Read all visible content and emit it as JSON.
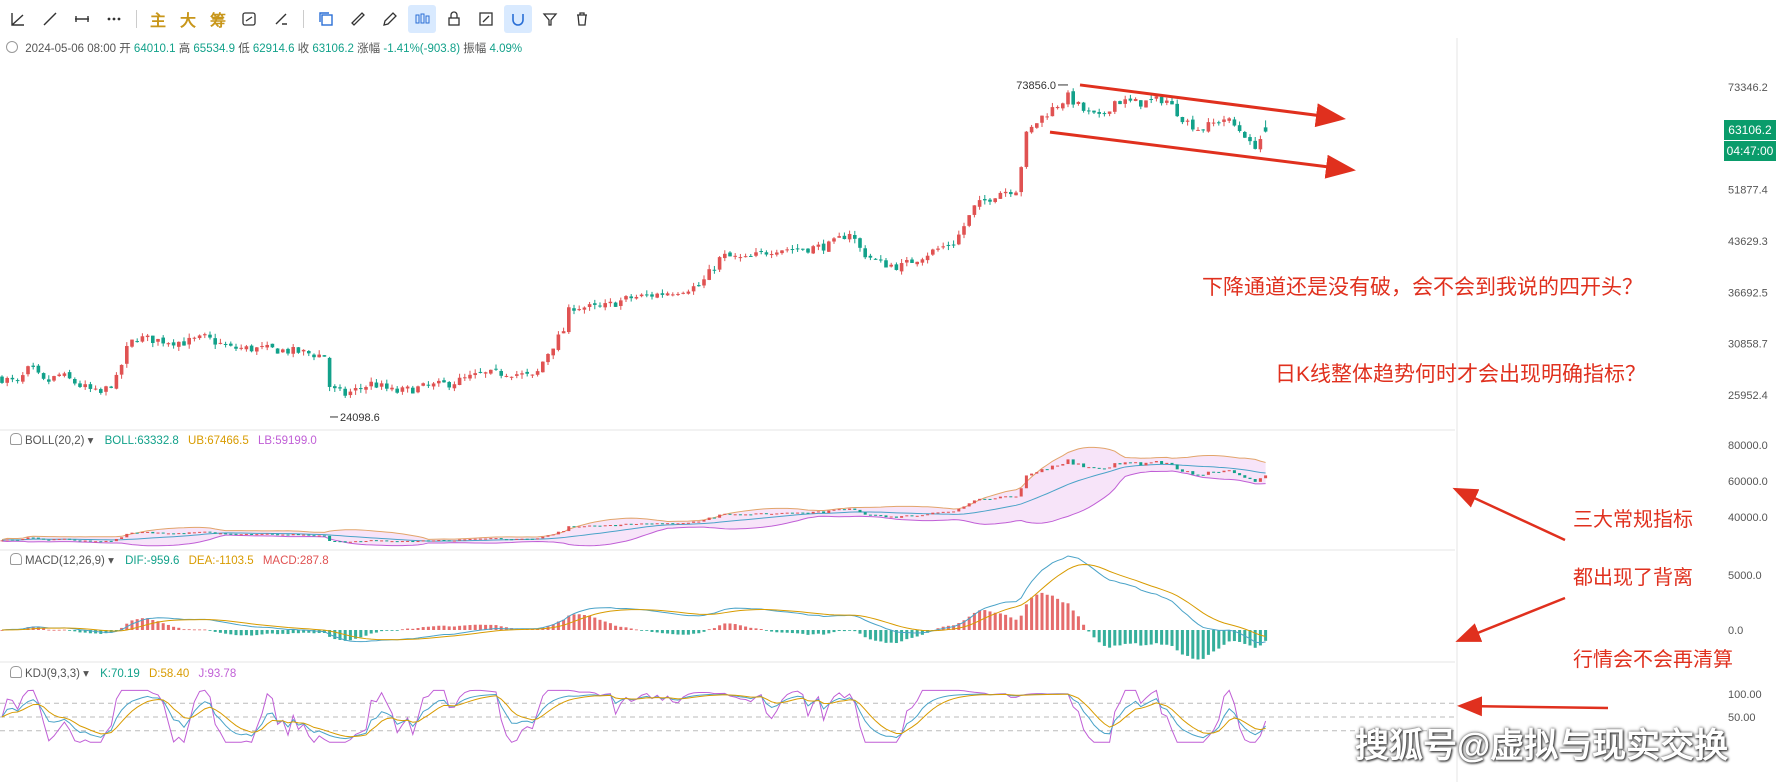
{
  "toolbar": {
    "items": [
      "主",
      "大",
      "筹"
    ]
  },
  "header": {
    "date": "2024-05-06 08:00",
    "open_label": "开",
    "open": "64010.1",
    "high_label": "高",
    "high": "65534.9",
    "low_label": "低",
    "low": "62914.6",
    "close_label": "收",
    "close": "63106.2",
    "change_label": "涨幅",
    "change": "-1.41%(-903.8)",
    "amp_label": "振幅",
    "amp": "4.09%"
  },
  "price_axis": {
    "ticks": [
      73346.2,
      51877.4,
      43629.3,
      36692.5,
      30858.7,
      25952.4
    ],
    "tick_labels": [
      "73346.2",
      "51877.4",
      "43629.3",
      "36692.5",
      "30858.7",
      "25952.4"
    ],
    "last_price": "63106.2",
    "countdown": "04:47:00",
    "log_scale": true
  },
  "markers": {
    "high": "73856.0",
    "low": "24098.6"
  },
  "boll": {
    "name": "BOLL(20,2)",
    "boll_label": "BOLL:",
    "boll": "63332.8",
    "ub_label": "UB:",
    "ub": "67466.5",
    "lb_label": "LB:",
    "lb": "59199.0",
    "ticks": [
      "80000.0",
      "60000.0",
      "40000.0"
    ]
  },
  "macd": {
    "name": "MACD(12,26,9)",
    "dif_label": "DIF:",
    "dif": "-959.6",
    "dea_label": "DEA:",
    "dea": "-1103.5",
    "macd_label": "MACD:",
    "macd": "287.8",
    "ticks": [
      "5000.0",
      "0.0"
    ]
  },
  "kdj": {
    "name": "KDJ(9,3,3)",
    "k_label": "K:",
    "k": "70.19",
    "d_label": "D:",
    "d": "58.40",
    "j_label": "J:",
    "j": "93.78",
    "ticks": [
      "100.00",
      "50.00"
    ]
  },
  "annotations": {
    "a1": "下降通道还是没有破，会不会到我说的四开头？",
    "a2": "日K线整体趋势何时才会出现明确指标？",
    "a3": "三大常规指标",
    "a4": "都出现了背离",
    "a5": "行情会不会再清算"
  },
  "watermark": "搜狐号@虚拟与现实交换",
  "colors": {
    "up": "#e05252",
    "down": "#12a18a",
    "annotation": "#e0301e",
    "tag": "#0a9c6b"
  },
  "chart_data": {
    "type": "candlestick",
    "title": "",
    "path": [
      [
        0,
        27500
      ],
      [
        18,
        27000
      ],
      [
        30,
        28500
      ],
      [
        45,
        27000
      ],
      [
        60,
        27800
      ],
      [
        80,
        26800
      ],
      [
        100,
        26000
      ],
      [
        118,
        27500
      ],
      [
        125,
        30000
      ],
      [
        135,
        31500
      ],
      [
        160,
        31200
      ],
      [
        185,
        31000
      ],
      [
        205,
        31500
      ],
      [
        230,
        30400
      ],
      [
        270,
        30300
      ],
      [
        300,
        30000
      ],
      [
        325,
        29600
      ],
      [
        330,
        26500
      ],
      [
        345,
        26000
      ],
      [
        372,
        27000
      ],
      [
        395,
        26200
      ],
      [
        420,
        26600
      ],
      [
        450,
        27000
      ],
      [
        480,
        27800
      ],
      [
        510,
        28000
      ],
      [
        535,
        27500
      ],
      [
        545,
        29500
      ],
      [
        565,
        32500
      ],
      [
        570,
        35000
      ],
      [
        600,
        34800
      ],
      [
        630,
        36000
      ],
      [
        660,
        36500
      ],
      [
        700,
        37500
      ],
      [
        722,
        41500
      ],
      [
        745,
        41000
      ],
      [
        775,
        42500
      ],
      [
        805,
        42500
      ],
      [
        830,
        43000
      ],
      [
        850,
        45000
      ],
      [
        862,
        42000
      ],
      [
        880,
        40500
      ],
      [
        900,
        40000
      ],
      [
        930,
        42000
      ],
      [
        955,
        43500
      ],
      [
        975,
        49000
      ],
      [
        1000,
        51500
      ],
      [
        1018,
        52000
      ],
      [
        1025,
        62000
      ],
      [
        1040,
        66000
      ],
      [
        1068,
        71000
      ],
      [
        1085,
        67500
      ],
      [
        1100,
        66000
      ],
      [
        1115,
        70000
      ],
      [
        1140,
        69500
      ],
      [
        1165,
        70500
      ],
      [
        1185,
        65500
      ],
      [
        1200,
        63500
      ],
      [
        1225,
        66000
      ],
      [
        1245,
        62500
      ],
      [
        1252,
        59500
      ],
      [
        1266,
        63100
      ]
    ],
    "channel_lines": [
      {
        "from": [
          1080,
          73856
        ],
        "to": [
          1340,
          66000
        ]
      },
      {
        "from": [
          1050,
          63000
        ],
        "to": [
          1350,
          55500
        ]
      }
    ],
    "last": {
      "open": 64010.1,
      "high": 65534.9,
      "low": 62914.6,
      "close": 63106.2
    },
    "series": [
      {
        "name": "BOLL",
        "value": 63332.8
      },
      {
        "name": "UB",
        "value": 67466.5
      },
      {
        "name": "LB",
        "value": 59199.0
      },
      {
        "name": "DIF",
        "value": -959.6
      },
      {
        "name": "DEA",
        "value": -1103.5
      },
      {
        "name": "MACD",
        "value": 287.8
      },
      {
        "name": "K",
        "value": 70.19
      },
      {
        "name": "D",
        "value": 58.4
      },
      {
        "name": "J",
        "value": 93.78
      }
    ],
    "grid": true
  }
}
